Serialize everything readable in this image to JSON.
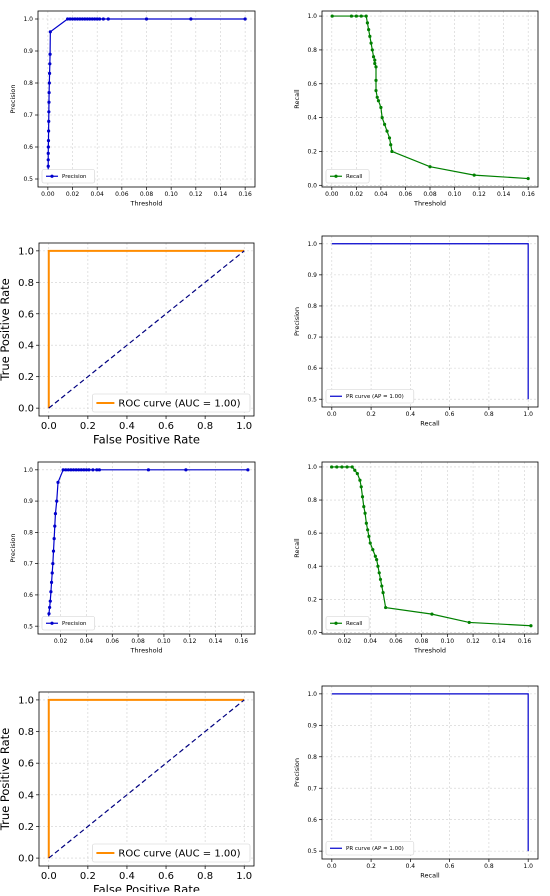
{
  "chart_data": [
    {
      "type": "line",
      "xlabel": "Threshold",
      "ylabel": "Precision",
      "xlim": [
        -0.008,
        0.168
      ],
      "ylim": [
        0.475,
        1.025
      ],
      "xticks": [
        "0.00",
        "0.02",
        "0.04",
        "0.06",
        "0.08",
        "0.10",
        "0.12",
        "0.14",
        "0.16"
      ],
      "xtick_values": [
        0,
        0.02,
        0.04,
        0.06,
        0.08,
        0.1,
        0.12,
        0.14,
        0.16
      ],
      "yticks": [
        "0.5",
        "0.6",
        "0.7",
        "0.8",
        "0.9",
        "1.0"
      ],
      "ytick_values": [
        0.5,
        0.6,
        0.7,
        0.8,
        0.9,
        1.0
      ],
      "grid": true,
      "legend_placement": "bottom-left",
      "series": [
        {
          "name": "Precision",
          "color": "#0000cc",
          "marker": "circle",
          "x": [
            0.0003,
            0.0003,
            0.0003,
            0.0003,
            0.0003,
            0.0004,
            0.0005,
            0.0006,
            0.0007,
            0.0008,
            0.0009,
            0.001,
            0.0012,
            0.0014,
            0.0016,
            0.0018,
            0.002,
            0.016,
            0.018,
            0.02,
            0.022,
            0.024,
            0.026,
            0.028,
            0.03,
            0.032,
            0.034,
            0.036,
            0.038,
            0.04,
            0.042,
            0.045,
            0.049,
            0.08,
            0.116,
            0.16
          ],
          "y": [
            0.5,
            0.52,
            0.54,
            0.56,
            0.58,
            0.6,
            0.62,
            0.65,
            0.68,
            0.71,
            0.74,
            0.77,
            0.8,
            0.83,
            0.86,
            0.89,
            0.96,
            1.0,
            1.0,
            1.0,
            1.0,
            1.0,
            1.0,
            1.0,
            1.0,
            1.0,
            1.0,
            1.0,
            1.0,
            1.0,
            1.0,
            1.0,
            1.0,
            1.0,
            1.0,
            1.0
          ]
        }
      ]
    },
    {
      "type": "line",
      "xlabel": "Threshold",
      "ylabel": "Recall",
      "xlim": [
        -0.008,
        0.168
      ],
      "ylim": [
        -0.01,
        1.03
      ],
      "xticks": [
        "0.00",
        "0.02",
        "0.04",
        "0.06",
        "0.08",
        "0.10",
        "0.12",
        "0.14",
        "0.16"
      ],
      "xtick_values": [
        0,
        0.02,
        0.04,
        0.06,
        0.08,
        0.1,
        0.12,
        0.14,
        0.16
      ],
      "yticks": [
        "0.0",
        "0.2",
        "0.4",
        "0.6",
        "0.8",
        "1.0"
      ],
      "ytick_values": [
        0,
        0.2,
        0.4,
        0.6,
        0.8,
        1.0
      ],
      "grid": true,
      "legend_placement": "bottom-left",
      "series": [
        {
          "name": "Recall",
          "color": "#008000",
          "marker": "circle",
          "x": [
            0.0003,
            0.016,
            0.02,
            0.024,
            0.028,
            0.029,
            0.03,
            0.031,
            0.032,
            0.033,
            0.034,
            0.035,
            0.035,
            0.036,
            0.036,
            0.036,
            0.037,
            0.038,
            0.04,
            0.041,
            0.043,
            0.045,
            0.047,
            0.048,
            0.049,
            0.08,
            0.116,
            0.16
          ],
          "y": [
            1.0,
            1.0,
            1.0,
            1.0,
            1.0,
            0.96,
            0.92,
            0.88,
            0.84,
            0.8,
            0.76,
            0.74,
            0.72,
            0.7,
            0.62,
            0.56,
            0.52,
            0.5,
            0.46,
            0.4,
            0.36,
            0.32,
            0.28,
            0.24,
            0.2,
            0.11,
            0.06,
            0.04
          ]
        }
      ]
    },
    {
      "type": "line",
      "xlabel": "False Positive Rate",
      "ylabel": "True Positive Rate",
      "xlim": [
        -0.05,
        1.05
      ],
      "ylim": [
        -0.05,
        1.05
      ],
      "xticks": [
        "0.0",
        "0.2",
        "0.4",
        "0.6",
        "0.8",
        "1.0"
      ],
      "xtick_values": [
        0,
        0.2,
        0.4,
        0.6,
        0.8,
        1.0
      ],
      "yticks": [
        "0.0",
        "0.2",
        "0.4",
        "0.6",
        "0.8",
        "1.0"
      ],
      "ytick_values": [
        0,
        0.2,
        0.4,
        0.6,
        0.8,
        1.0
      ],
      "grid": true,
      "legend_placement": "bottom-right",
      "series": [
        {
          "name": "ROC curve (AUC = 1.00)",
          "color": "#ff8c00",
          "style": "solid",
          "x": [
            0,
            0,
            1
          ],
          "y": [
            0,
            1,
            1
          ]
        },
        {
          "name": "",
          "color": "#000080",
          "style": "dashed",
          "x": [
            0,
            1
          ],
          "y": [
            0,
            1
          ]
        }
      ]
    },
    {
      "type": "line",
      "xlabel": "Recall",
      "ylabel": "Precision",
      "xlim": [
        -0.05,
        1.05
      ],
      "ylim": [
        0.475,
        1.025
      ],
      "xticks": [
        "0.0",
        "0.2",
        "0.4",
        "0.6",
        "0.8",
        "1.0"
      ],
      "xtick_values": [
        0,
        0.2,
        0.4,
        0.6,
        0.8,
        1.0
      ],
      "yticks": [
        "0.5",
        "0.6",
        "0.7",
        "0.8",
        "0.9",
        "1.0"
      ],
      "ytick_values": [
        0.5,
        0.6,
        0.7,
        0.8,
        0.9,
        1.0
      ],
      "grid": true,
      "legend_placement": "bottom-left",
      "series": [
        {
          "name": "PR curve (AP = 1.00)",
          "color": "#0000cc",
          "style": "solid",
          "x": [
            0,
            1,
            1
          ],
          "y": [
            1,
            1,
            0.5
          ]
        }
      ]
    },
    {
      "type": "line",
      "xlabel": "Threshold",
      "ylabel": "Precision",
      "xlim": [
        0.0025,
        0.1705
      ],
      "ylim": [
        0.475,
        1.025
      ],
      "xticks": [
        "0.02",
        "0.04",
        "0.06",
        "0.08",
        "0.10",
        "0.12",
        "0.14",
        "0.16"
      ],
      "xtick_values": [
        0.02,
        0.04,
        0.06,
        0.08,
        0.1,
        0.12,
        0.14,
        0.16
      ],
      "yticks": [
        "0.5",
        "0.6",
        "0.7",
        "0.8",
        "0.9",
        "1.0"
      ],
      "ytick_values": [
        0.5,
        0.6,
        0.7,
        0.8,
        0.9,
        1.0
      ],
      "grid": true,
      "legend_placement": "bottom-left",
      "series": [
        {
          "name": "Precision",
          "color": "#0000cc",
          "marker": "circle",
          "x": [
            0.01,
            0.0105,
            0.011,
            0.0115,
            0.012,
            0.0125,
            0.013,
            0.0135,
            0.014,
            0.0145,
            0.015,
            0.0155,
            0.016,
            0.017,
            0.018,
            0.022,
            0.024,
            0.026,
            0.028,
            0.03,
            0.032,
            0.034,
            0.036,
            0.038,
            0.04,
            0.042,
            0.045,
            0.048,
            0.05,
            0.088,
            0.117,
            0.165
          ],
          "y": [
            0.5,
            0.52,
            0.54,
            0.56,
            0.58,
            0.61,
            0.64,
            0.67,
            0.7,
            0.74,
            0.78,
            0.82,
            0.86,
            0.9,
            0.96,
            1.0,
            1.0,
            1.0,
            1.0,
            1.0,
            1.0,
            1.0,
            1.0,
            1.0,
            1.0,
            1.0,
            1.0,
            1.0,
            1.0,
            1.0,
            1.0,
            1.0
          ]
        }
      ]
    },
    {
      "type": "line",
      "xlabel": "Threshold",
      "ylabel": "Recall",
      "xlim": [
        0.0025,
        0.1705
      ],
      "ylim": [
        -0.01,
        1.03
      ],
      "xticks": [
        "0.02",
        "0.04",
        "0.06",
        "0.08",
        "0.10",
        "0.12",
        "0.14",
        "0.16"
      ],
      "xtick_values": [
        0.02,
        0.04,
        0.06,
        0.08,
        0.1,
        0.12,
        0.14,
        0.16
      ],
      "yticks": [
        "0.0",
        "0.2",
        "0.4",
        "0.6",
        "0.8",
        "1.0"
      ],
      "ytick_values": [
        0,
        0.2,
        0.4,
        0.6,
        0.8,
        1.0
      ],
      "grid": true,
      "legend_placement": "bottom-left",
      "series": [
        {
          "name": "Recall",
          "color": "#008000",
          "marker": "circle",
          "x": [
            0.01,
            0.014,
            0.018,
            0.022,
            0.026,
            0.028,
            0.03,
            0.032,
            0.033,
            0.034,
            0.035,
            0.036,
            0.037,
            0.038,
            0.039,
            0.04,
            0.042,
            0.044,
            0.045,
            0.046,
            0.047,
            0.048,
            0.049,
            0.05,
            0.052,
            0.088,
            0.117,
            0.165
          ],
          "y": [
            1.0,
            1.0,
            1.0,
            1.0,
            1.0,
            0.98,
            0.96,
            0.92,
            0.88,
            0.82,
            0.76,
            0.72,
            0.66,
            0.62,
            0.58,
            0.54,
            0.5,
            0.46,
            0.44,
            0.4,
            0.36,
            0.32,
            0.28,
            0.24,
            0.15,
            0.11,
            0.06,
            0.04
          ]
        }
      ]
    },
    {
      "type": "line",
      "xlabel": "False Positive Rate",
      "ylabel": "True Positive Rate",
      "xlim": [
        -0.05,
        1.05
      ],
      "ylim": [
        -0.05,
        1.05
      ],
      "xticks": [
        "0.0",
        "0.2",
        "0.4",
        "0.6",
        "0.8",
        "1.0"
      ],
      "xtick_values": [
        0,
        0.2,
        0.4,
        0.6,
        0.8,
        1.0
      ],
      "yticks": [
        "0.0",
        "0.2",
        "0.4",
        "0.6",
        "0.8",
        "1.0"
      ],
      "ytick_values": [
        0,
        0.2,
        0.4,
        0.6,
        0.8,
        1.0
      ],
      "grid": true,
      "legend_placement": "bottom-right",
      "series": [
        {
          "name": "ROC curve (AUC = 1.00)",
          "color": "#ff8c00",
          "style": "solid",
          "x": [
            0,
            0,
            1
          ],
          "y": [
            0,
            1,
            1
          ]
        },
        {
          "name": "",
          "color": "#000080",
          "style": "dashed",
          "x": [
            0,
            1
          ],
          "y": [
            0,
            1
          ]
        }
      ]
    },
    {
      "type": "line",
      "xlabel": "Recall",
      "ylabel": "Precision",
      "xlim": [
        -0.05,
        1.05
      ],
      "ylim": [
        0.475,
        1.025
      ],
      "xticks": [
        "0.0",
        "0.2",
        "0.4",
        "0.6",
        "0.8",
        "1.0"
      ],
      "xtick_values": [
        0,
        0.2,
        0.4,
        0.6,
        0.8,
        1.0
      ],
      "yticks": [
        "0.5",
        "0.6",
        "0.7",
        "0.8",
        "0.9",
        "1.0"
      ],
      "ytick_values": [
        0.5,
        0.6,
        0.7,
        0.8,
        0.9,
        1.0
      ],
      "grid": true,
      "legend_placement": "bottom-left",
      "series": [
        {
          "name": "PR curve (AP = 1.00)",
          "color": "#0000cc",
          "style": "solid",
          "x": [
            0,
            1,
            1
          ],
          "y": [
            1,
            1,
            0.5
          ]
        }
      ]
    }
  ]
}
